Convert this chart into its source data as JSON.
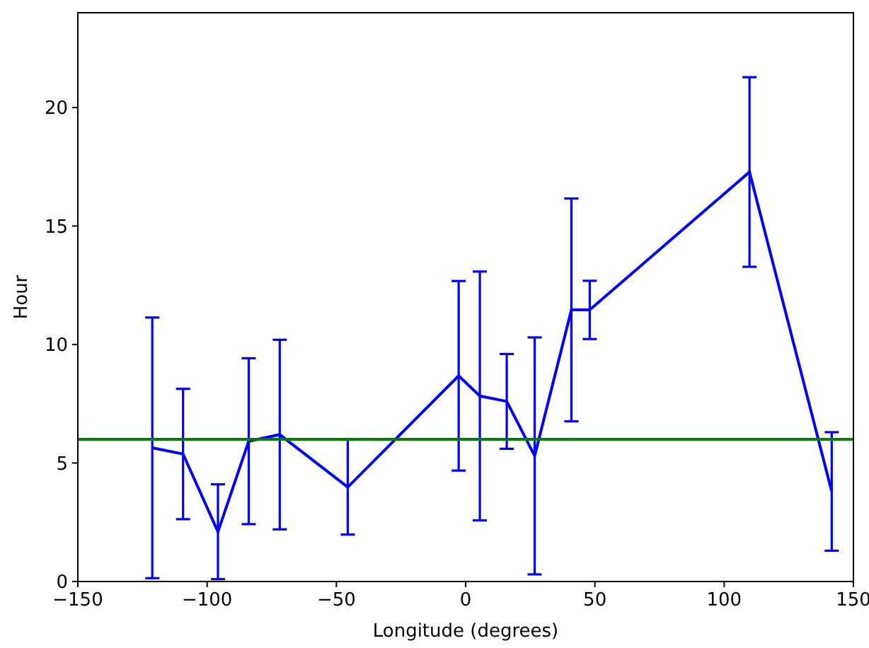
{
  "chart_data": {
    "type": "line",
    "xlabel": "Longitude (degrees)",
    "ylabel": "Hour",
    "x": [
      -121.2,
      -109.3,
      -95.8,
      -83.9,
      -71.9,
      -45.6,
      -2.7,
      5.5,
      15.9,
      26.7,
      40.9,
      48,
      109.8,
      141.6
    ],
    "series": [
      {
        "color": "#0000ff",
        "values": [
          5.64,
          5.38,
          2.1,
          5.92,
          6.2,
          3.98,
          8.68,
          7.83,
          7.6,
          5.3,
          11.46,
          11.46,
          17.28,
          3.8
        ],
        "errors": [
          5.5,
          2.75,
          2.0,
          3.5,
          4.0,
          2.0,
          4.0,
          5.25,
          2.0,
          5.0,
          4.7,
          1.23,
          4.0,
          2.5
        ]
      }
    ],
    "xlim": [
      -150,
      150
    ],
    "xticks": [
      -150,
      -100,
      -50,
      0,
      50,
      100,
      150
    ],
    "ylim": [
      0,
      24
    ],
    "yticks": [
      0,
      5,
      10,
      15,
      20
    ],
    "ref_lines": [
      {
        "axis": "y",
        "value": 6,
        "color": "#008000"
      }
    ],
    "grid": false,
    "marker": "none",
    "line_style": "solid"
  }
}
